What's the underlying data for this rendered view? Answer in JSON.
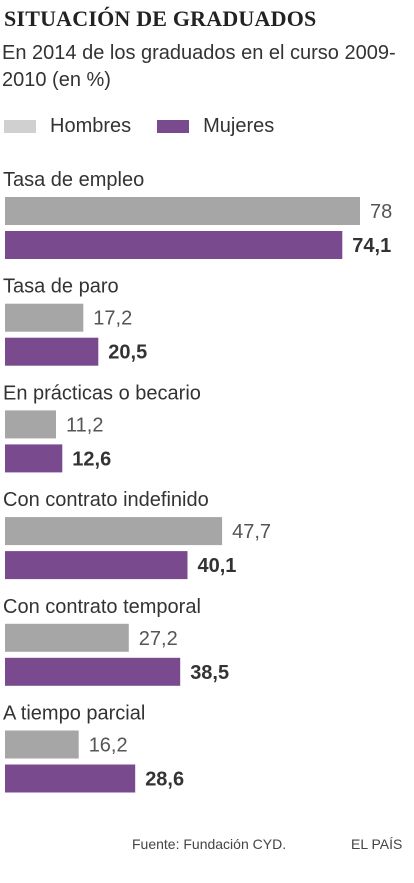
{
  "header": {
    "title": "SITUACIÓN DE GRADUADOS",
    "subtitle": "En 2014 de los graduados en el curso 2009-2010  (en %)"
  },
  "legend": {
    "hombres": "Hombres",
    "mujeres": "Mujeres"
  },
  "colors": {
    "hombres": "#a6a6a6",
    "hombres_legend": "#d0d0d0",
    "mujeres": "#7a4a8e"
  },
  "footer": {
    "source": "Fuente: Fundación CYD.",
    "brand": "EL PAÍS"
  },
  "chart_data": {
    "type": "bar",
    "orientation": "horizontal",
    "categories": [
      "Tasa de empleo",
      "Tasa de paro",
      "En prácticas o becario",
      "Con contrato indefinido",
      "Con contrato temporal",
      "A tiempo parcial"
    ],
    "series": [
      {
        "name": "Hombres",
        "values": [
          78,
          17.2,
          11.2,
          47.7,
          27.2,
          16.2
        ],
        "labels": [
          "78",
          "17,2",
          "11,2",
          "47,7",
          "27,2",
          "16,2"
        ]
      },
      {
        "name": "Mujeres",
        "values": [
          74.1,
          20.5,
          12.6,
          40.1,
          38.5,
          28.6
        ],
        "labels": [
          "74,1",
          "20,5",
          "12,6",
          "40,1",
          "38,5",
          "28,6"
        ]
      }
    ],
    "xlim": [
      0,
      78
    ]
  }
}
